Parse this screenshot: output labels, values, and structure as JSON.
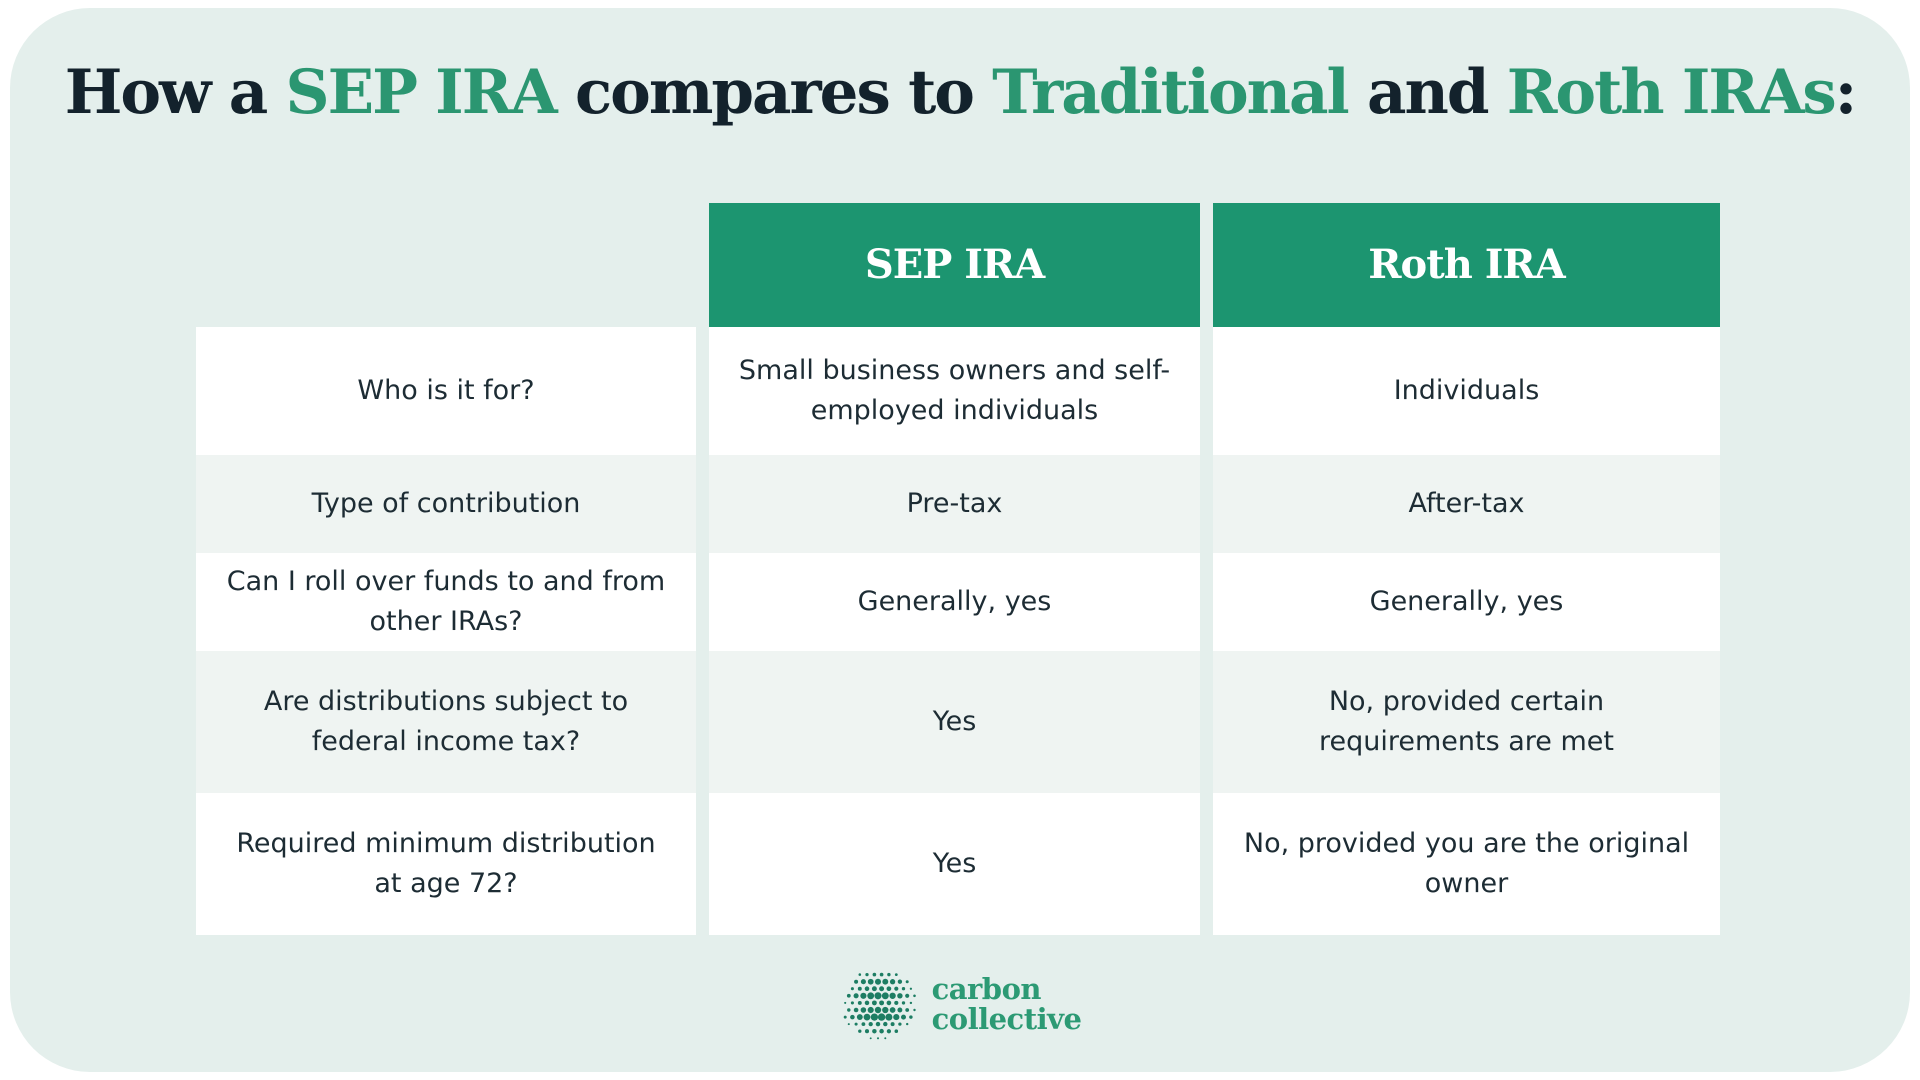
{
  "title": {
    "full_text": "How a SEP IRA compares to Traditional and Roth IRAs:",
    "segments": [
      {
        "text": "How a ",
        "color": "dark"
      },
      {
        "text": "SEP IRA",
        "color": "green"
      },
      {
        "text": " compares to ",
        "color": "dark"
      },
      {
        "text": "Traditional",
        "color": "green"
      },
      {
        "text": " and ",
        "color": "dark"
      },
      {
        "text": "Roth IRAs",
        "color": "green"
      },
      {
        "text": ":",
        "color": "dark"
      }
    ]
  },
  "chart_data": {
    "type": "table",
    "title": "How a SEP IRA compares to Traditional and Roth IRAs:",
    "columns": [
      "",
      "SEP IRA",
      "Roth IRA"
    ],
    "rows": [
      [
        "Who is it for?",
        "Small business owners and self-employed individuals",
        "Individuals"
      ],
      [
        "Type of contribution",
        "Pre-tax",
        "After-tax"
      ],
      [
        "Can I roll over funds to and from other IRAs?",
        "Generally, yes",
        "Generally, yes"
      ],
      [
        "Are distributions subject to federal income tax?",
        "Yes",
        "No, provided certain requirements are met"
      ],
      [
        "Required minimum distribution at age 72?",
        "Yes",
        "No, provided you are the original owner"
      ]
    ],
    "layout_hints": {
      "header_background": "#1c9570",
      "row_alternating_backgrounds": [
        "#ffffff",
        "#eff4f2"
      ],
      "label_column_has_no_header": true
    }
  },
  "footer": {
    "brand_line1": "carbon",
    "brand_line2": "collective"
  },
  "icons": {
    "logo_dots": "halftone-dot-sphere"
  },
  "colors": {
    "accent_green": "#1c9570",
    "title_green": "#2b9671",
    "card_bg": "#e4efec",
    "row_alt_bg": "#eff4f2",
    "dark_text": "#13222c",
    "body_text": "#1d2c34",
    "logo_green": "#2c9a74",
    "logo_dot_green": "#1d7d63"
  }
}
